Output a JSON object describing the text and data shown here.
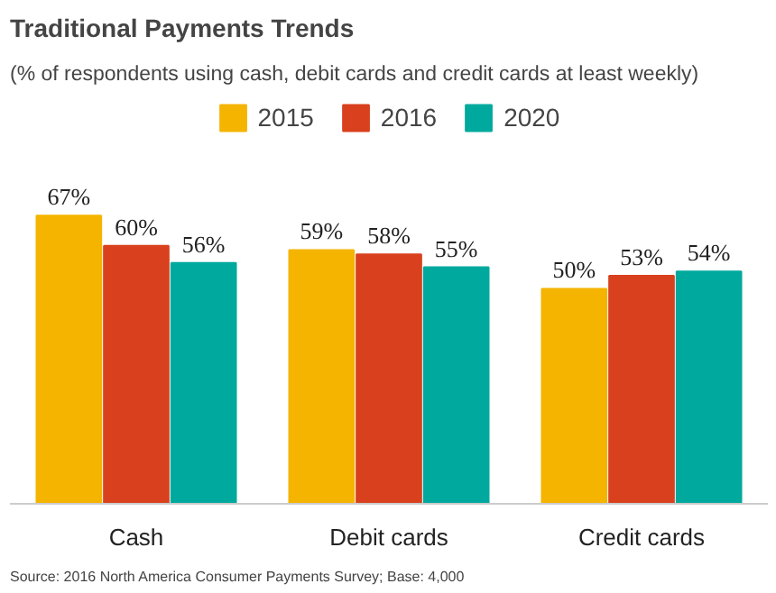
{
  "chart_data": {
    "type": "bar",
    "title": "Traditional Payments Trends",
    "subtitle": "(% of respondents using cash, debit cards and credit cards at least weekly)",
    "categories": [
      "Cash",
      "Debit cards",
      "Credit cards"
    ],
    "series": [
      {
        "name": "2015",
        "color": "#f5b400",
        "values": [
          67,
          59,
          50
        ],
        "value_labels": [
          "67%",
          "59%",
          "50%"
        ]
      },
      {
        "name": "2016",
        "color": "#d9411e",
        "values": [
          60,
          58,
          53
        ],
        "value_labels": [
          "60%",
          "58%",
          "53%"
        ]
      },
      {
        "name": "2020",
        "color": "#00a99d",
        "values": [
          56,
          55,
          54
        ],
        "value_labels": [
          "56%",
          "55%",
          "54%"
        ]
      }
    ],
    "legend": "top",
    "annotations": [
      "Source: 2016 North America Consumer Payments Survey; Base: 4,000"
    ]
  }
}
